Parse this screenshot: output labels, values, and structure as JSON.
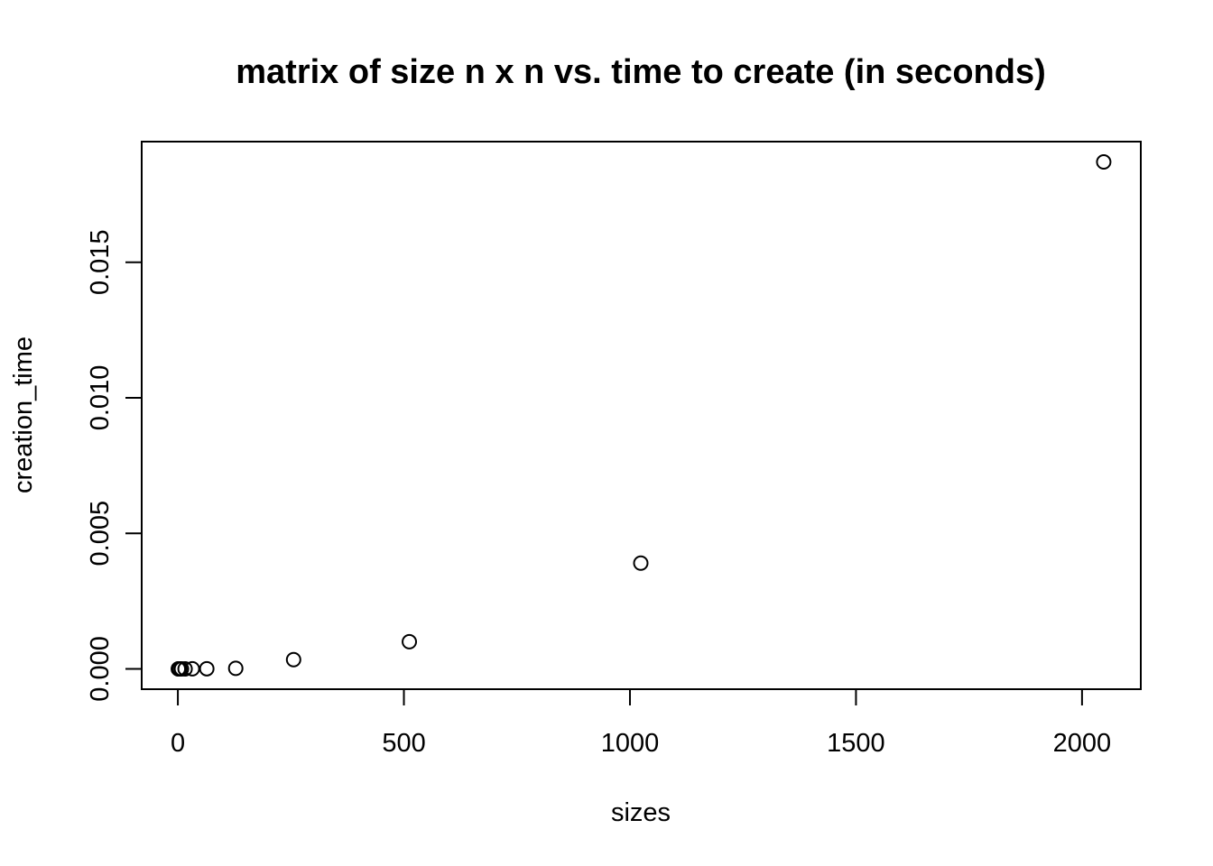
{
  "chart_data": {
    "type": "scatter",
    "title": "matrix of size n x n vs. time to create (in seconds)",
    "xlabel": "sizes",
    "ylabel": "creation_time",
    "xlim": [
      -80,
      2130
    ],
    "ylim": [
      -0.00075,
      0.01945
    ],
    "x_ticks": [
      0,
      500,
      1000,
      1500,
      2000
    ],
    "x_tick_labels": [
      "0",
      "500",
      "1000",
      "1500",
      "2000"
    ],
    "y_ticks": [
      0,
      0.005,
      0.01,
      0.015
    ],
    "y_tick_labels": [
      "0.000",
      "0.005",
      "0.010",
      "0.015"
    ],
    "grid": false,
    "legend": "none",
    "series": [
      {
        "x": [
          1,
          2,
          4,
          8,
          16,
          32,
          64,
          128,
          256,
          512,
          1024,
          2048
        ],
        "y": [
          0,
          0,
          0,
          0,
          0,
          2e-06,
          5e-06,
          2e-05,
          0.00034,
          0.001,
          0.0039,
          0.0187
        ]
      }
    ]
  }
}
